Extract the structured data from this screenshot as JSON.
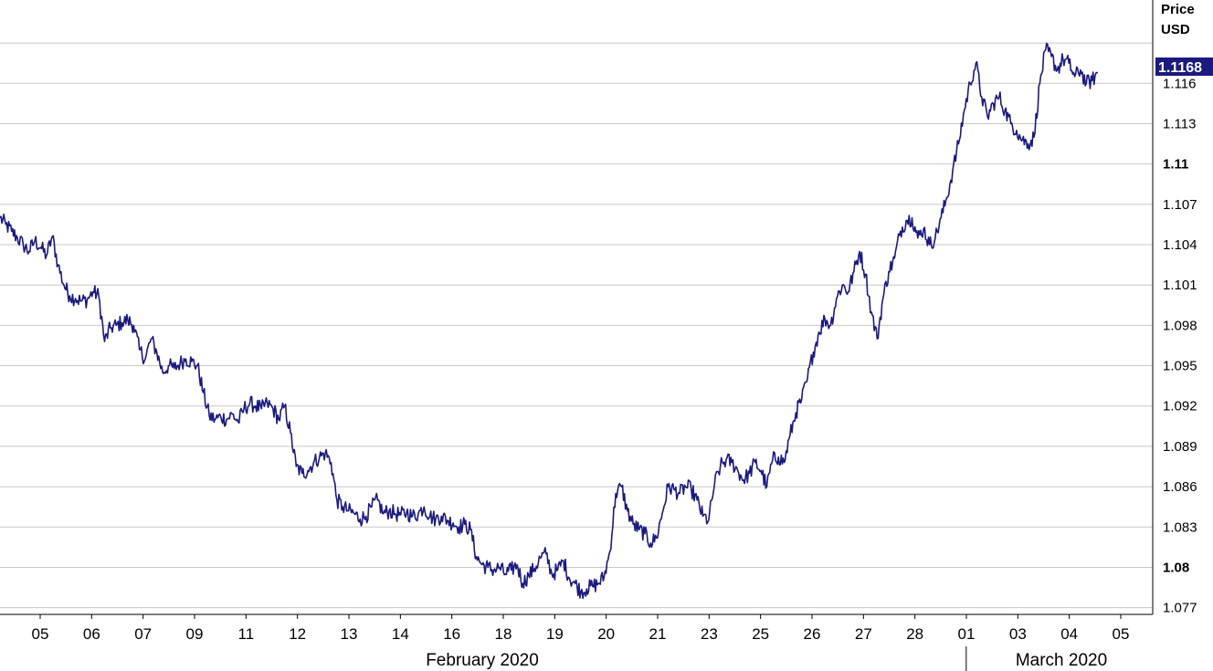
{
  "chart_data": {
    "type": "line",
    "unit_line1": "Price",
    "unit_line2": "USD",
    "last_value": "1.1168",
    "ylim": [
      1.0765,
      1.1222
    ],
    "y_ticks": [
      {
        "value": 1.077,
        "label": "1.077",
        "major": false
      },
      {
        "value": 1.08,
        "label": "1.08",
        "major": true
      },
      {
        "value": 1.083,
        "label": "1.083",
        "major": false
      },
      {
        "value": 1.086,
        "label": "1.086",
        "major": false
      },
      {
        "value": 1.089,
        "label": "1.089",
        "major": false
      },
      {
        "value": 1.092,
        "label": "1.092",
        "major": false
      },
      {
        "value": 1.095,
        "label": "1.095",
        "major": false
      },
      {
        "value": 1.098,
        "label": "1.098",
        "major": false
      },
      {
        "value": 1.101,
        "label": "1.101",
        "major": false
      },
      {
        "value": 1.104,
        "label": "1.104",
        "major": false
      },
      {
        "value": 1.107,
        "label": "1.107",
        "major": false
      },
      {
        "value": 1.11,
        "label": "1.11",
        "major": true
      },
      {
        "value": 1.113,
        "label": "1.113",
        "major": false
      },
      {
        "value": 1.116,
        "label": "1.116",
        "major": false
      },
      {
        "value": 1.119,
        "label": "",
        "major": false
      }
    ],
    "x_ticks": [
      "05",
      "06",
      "07",
      "09",
      "11",
      "12",
      "13",
      "14",
      "16",
      "18",
      "19",
      "20",
      "21",
      "23",
      "25",
      "26",
      "27",
      "28",
      "01",
      "03",
      "04",
      "05"
    ],
    "months": [
      {
        "label": "February 2020",
        "start_tick": 0,
        "end_tick": 17
      },
      {
        "label": "March 2020",
        "start_tick": 18,
        "end_tick": 21
      }
    ],
    "line_color": "#1a1a80",
    "series": [
      {
        "values": [
          1.106,
          1.1055,
          1.105,
          1.1045,
          1.104,
          1.1035,
          1.1043,
          1.1038,
          1.1032,
          1.1046,
          1.1025,
          1.101,
          1.1002,
          1.1,
          1.0998,
          1.0999,
          1.1005,
          1.1002,
          1.0968,
          1.0978,
          1.098,
          1.0982,
          1.0984,
          1.098,
          1.0962,
          1.0955,
          1.097,
          1.096,
          1.0945,
          1.095,
          1.0948,
          1.0952,
          1.0955,
          1.0953,
          1.095,
          1.093,
          1.0913,
          1.091,
          1.0912,
          1.091,
          1.0914,
          1.0908,
          1.0918,
          1.0922,
          1.092,
          1.0918,
          1.0922,
          1.0918,
          1.091,
          1.092,
          1.09,
          1.0875,
          1.087,
          1.0872,
          1.0878,
          1.0882,
          1.0885,
          1.0878,
          1.085,
          1.0845,
          1.0842,
          1.084,
          1.0836,
          1.0838,
          1.0845,
          1.085,
          1.084,
          1.0842,
          1.084,
          1.0839,
          1.0841,
          1.0838,
          1.084,
          1.0845,
          1.0838,
          1.0836,
          1.0838,
          1.0835,
          1.0833,
          1.083,
          1.0832,
          1.0828,
          1.0808,
          1.0802,
          1.08,
          1.0798,
          1.08,
          1.0795,
          1.0798,
          1.0802,
          1.0788,
          1.0794,
          1.0799,
          1.0807,
          1.081,
          1.0795,
          1.0798,
          1.0805,
          1.0792,
          1.0788,
          1.0782,
          1.0784,
          1.0786,
          1.0788,
          1.0793,
          1.0812,
          1.0855,
          1.086,
          1.0842,
          1.0832,
          1.0828,
          1.0825,
          1.0818,
          1.0822,
          1.084,
          1.086,
          1.0858,
          1.0855,
          1.086,
          1.0858,
          1.085,
          1.0838,
          1.0835,
          1.0862,
          1.0875,
          1.088,
          1.0878,
          1.0872,
          1.0865,
          1.087,
          1.0878,
          1.0872,
          1.086,
          1.088,
          1.0882,
          1.0878,
          1.0898,
          1.0915,
          1.0925,
          1.094,
          1.096,
          1.0975,
          1.0985,
          1.098,
          1.1,
          1.101,
          1.1005,
          1.102,
          1.1035,
          1.1018,
          1.099,
          1.097,
          1.1,
          1.102,
          1.103,
          1.105,
          1.1058,
          1.106,
          1.1045,
          1.1052,
          1.104,
          1.1045,
          1.106,
          1.1075,
          1.1095,
          1.1115,
          1.114,
          1.116,
          1.1175,
          1.115,
          1.1135,
          1.1145,
          1.115,
          1.114,
          1.113,
          1.1125,
          1.1118,
          1.1115,
          1.112,
          1.116,
          1.1185,
          1.118,
          1.117,
          1.1178,
          1.1175,
          1.1165,
          1.117,
          1.116,
          1.1162,
          1.1168
        ]
      }
    ]
  }
}
